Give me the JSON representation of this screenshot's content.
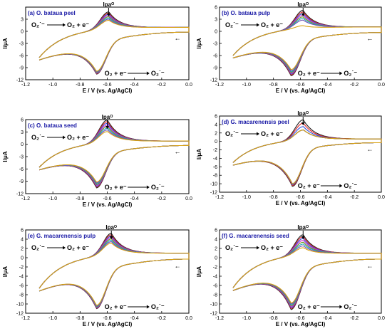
{
  "chart_data": {
    "type": "line",
    "xlabel": "E / V (vs. Ag/AgCl)",
    "ylabel": "I/μA",
    "series_colors": [
      "#222222",
      "#e02020",
      "#3050e0",
      "#d030d0",
      "#6a9a20",
      "#20a0c0",
      "#7050b0",
      "#d8a010"
    ],
    "reduction_eq": {
      "text": "O₂ + e⁻",
      "product": "O₂˙⁻"
    },
    "oxidation_eq": {
      "text": "O₂˙⁻",
      "product": "O₂ + e⁻"
    },
    "peak_label": "Ipaᴼ",
    "scan_direction_arrow": "←",
    "panels": [
      {
        "label": "(a) O. bataua peel",
        "xlim": [
          -1.2,
          0.0
        ],
        "ylim": [
          -12,
          6
        ],
        "xticks": [
          "-1.2",
          "-1.0",
          "-0.8",
          "-0.6",
          "-0.4",
          "-0.2",
          "0.0"
        ],
        "yticks": [
          "3",
          "0",
          "-3",
          "-6",
          "-9",
          "-12"
        ],
        "ytick_values": [
          3,
          0,
          -3,
          -6,
          -9,
          -12
        ],
        "e_start": -1.1,
        "e_end": 0.0,
        "ox_peak_potential": -0.59,
        "red_peak_potential": -0.68,
        "ox_peak_currents": [
          4.9,
          4.6,
          4.3,
          4.0,
          3.7,
          3.4,
          3.1,
          2.8
        ],
        "red_peak_currents": [
          -10.6,
          -10.5,
          -10.4,
          -10.3,
          -10.2,
          -10.1,
          -10.0,
          -9.9
        ],
        "baseline_anodic": 1.0,
        "baseline_cathodic": -0.2,
        "start_current": -6.5
      },
      {
        "label": "(b) O. bataua pulp",
        "xlim": [
          -1.2,
          0.0
        ],
        "ylim": [
          -12,
          6
        ],
        "xticks": [
          "-1.2",
          "-1.0",
          "-0.8",
          "-0.6",
          "-0.4",
          "-0.2",
          "0.0"
        ],
        "yticks": [
          "6",
          "3",
          "0",
          "-3",
          "-6",
          "-9",
          "-12"
        ],
        "ytick_values": [
          6,
          3,
          0,
          -3,
          -6,
          -9,
          -12
        ],
        "e_start": -1.1,
        "e_end": 0.0,
        "ox_peak_potential": -0.58,
        "red_peak_potential": -0.67,
        "ox_peak_currents": [
          5.2,
          4.8,
          4.4,
          4.0,
          3.6,
          3.2,
          2.8,
          1.4
        ],
        "red_peak_currents": [
          -11.0,
          -10.8,
          -10.6,
          -10.4,
          -10.2,
          -10.0,
          -9.8,
          -9.5
        ],
        "baseline_anodic": 1.1,
        "baseline_cathodic": -0.3,
        "start_current": -6.0
      },
      {
        "label": "(c) O. bataua seed",
        "xlim": [
          -1.2,
          0.0
        ],
        "ylim": [
          -12,
          6
        ],
        "xticks": [
          "-1.2",
          "-1.0",
          "-0.8",
          "-0.6",
          "-0.4",
          "-0.2",
          "0.0"
        ],
        "yticks": [
          "6",
          "3",
          "0",
          "-3",
          "-6",
          "-9",
          "-12"
        ],
        "ytick_values": [
          6,
          3,
          0,
          -3,
          -6,
          -9,
          -12
        ],
        "e_start": -1.1,
        "e_end": 0.0,
        "ox_peak_potential": -0.6,
        "red_peak_potential": -0.68,
        "ox_peak_currents": [
          6.0,
          5.6,
          5.2,
          4.8,
          4.4,
          4.0,
          3.6,
          3.2
        ],
        "red_peak_currents": [
          -10.6,
          -10.4,
          -10.2,
          -10.0,
          -9.8,
          -9.6,
          -9.4,
          -9.2
        ],
        "baseline_anodic": 0.8,
        "baseline_cathodic": -0.3,
        "start_current": -5.6
      },
      {
        "label": "(d) G. macarenensis peel",
        "xlim": [
          -1.2,
          0.0
        ],
        "ylim": [
          -12,
          6
        ],
        "xticks": [
          "-1.2",
          "-1.0",
          "-0.8",
          "-0.6",
          "-0.4",
          "-0.2",
          "0.0"
        ],
        "yticks": [
          "6",
          "4",
          "2",
          "0",
          "-2",
          "-4",
          "-6",
          "-8",
          "-10",
          "-12"
        ],
        "ytick_values": [
          6,
          4,
          2,
          0,
          -2,
          -4,
          -6,
          -8,
          -10,
          -12
        ],
        "e_start": -1.1,
        "e_end": 0.0,
        "ox_peak_potential": -0.58,
        "red_peak_potential": -0.66,
        "ox_peak_currents": [
          5.2,
          4.4,
          3.6,
          2.8,
          2.8,
          2.8,
          2.8,
          2.8
        ],
        "red_peak_currents": [
          -10.6,
          -10.4,
          -10.2,
          -10.0,
          -10.0,
          -10.0,
          -10.0,
          -10.0
        ],
        "baseline_anodic": 0.6,
        "baseline_cathodic": -0.3,
        "start_current": -5.0
      },
      {
        "label": "(e) G. macarenensis pulp",
        "xlim": [
          -1.2,
          0.0
        ],
        "ylim": [
          -12,
          6
        ],
        "xticks": [
          "-1.2",
          "-1.0",
          "-0.8",
          "-0.6",
          "-0.4",
          "-0.2",
          "0.0"
        ],
        "yticks": [
          "6",
          "4",
          "2",
          "0",
          "-2",
          "-4",
          "-6",
          "-8",
          "-10",
          "-12"
        ],
        "ytick_values": [
          6,
          4,
          2,
          0,
          -2,
          -4,
          -6,
          -8,
          -10,
          -12
        ],
        "e_start": -1.1,
        "e_end": 0.0,
        "ox_peak_potential": -0.57,
        "red_peak_potential": -0.68,
        "ox_peak_currents": [
          5.3,
          5.0,
          4.7,
          4.4,
          4.1,
          3.8,
          3.5,
          3.2
        ],
        "red_peak_currents": [
          -11.0,
          -10.9,
          -10.8,
          -10.7,
          -10.6,
          -10.5,
          -10.4,
          -10.3
        ],
        "baseline_anodic": 1.0,
        "baseline_cathodic": -0.3,
        "start_current": -6.6
      },
      {
        "label": "(f) G. macarenensis seed",
        "xlim": [
          -1.2,
          0.0
        ],
        "ylim": [
          -12,
          6
        ],
        "xticks": [
          "-1.2",
          "-1.0",
          "-0.8",
          "-0.6",
          "-0.4",
          "-0.2",
          "0.0"
        ],
        "yticks": [
          "6",
          "4",
          "2",
          "0",
          "-2",
          "-4",
          "-6",
          "-8",
          "-10",
          "-12"
        ],
        "ytick_values": [
          6,
          4,
          2,
          0,
          -2,
          -4,
          -6,
          -8,
          -10,
          -12
        ],
        "e_start": -1.1,
        "e_end": 0.0,
        "ox_peak_potential": -0.58,
        "red_peak_potential": -0.67,
        "ox_peak_currents": [
          5.0,
          4.6,
          4.2,
          3.8,
          3.4,
          3.0,
          2.6,
          2.2
        ],
        "red_peak_currents": [
          -11.2,
          -11.0,
          -10.8,
          -10.6,
          -10.4,
          -10.2,
          -10.0,
          -9.8
        ],
        "baseline_anodic": 1.0,
        "baseline_cathodic": -0.3,
        "start_current": -6.5
      }
    ]
  }
}
